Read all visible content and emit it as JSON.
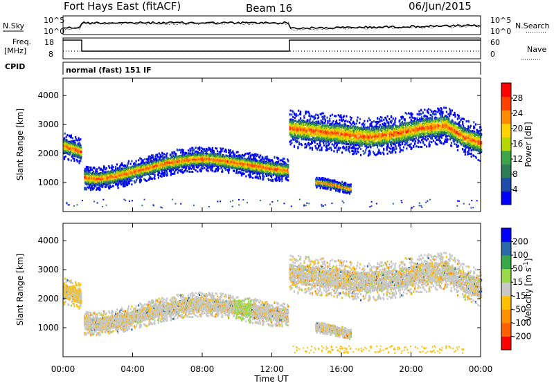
{
  "header": {
    "station": "Fort Hays East (fitACF)",
    "beam": "Beam 16",
    "date": "06/Jun/2015"
  },
  "top_panel": {
    "left_label": "N.Sky",
    "right_label": "N.Search",
    "left_ticks": [
      "10^5",
      "10^0"
    ],
    "right_ticks": [
      "10^5",
      "10^0"
    ]
  },
  "freq_panel": {
    "left_label_line1": "Freq.",
    "left_label_line2": "[MHz]",
    "right_label": "Nave",
    "left_ticks": [
      "18",
      "8"
    ],
    "right_ticks": [
      "60",
      "0"
    ]
  },
  "cpid": {
    "label": "CPID",
    "value": "normal (fast) 151 IF"
  },
  "colors": {
    "power": [
      "#0000ff",
      "#1e4ca8",
      "#2e7d5a",
      "#3fa54a",
      "#b5d900",
      "#ffd200",
      "#ff8c00",
      "#ff4000",
      "#ff0000"
    ],
    "velocity": [
      "#ff0000",
      "#ff6000",
      "#ff9000",
      "#ffc000",
      "#c8c8c8",
      "#9ad94a",
      "#3aa84a",
      "#2a6aa8",
      "#0000ff"
    ]
  },
  "chart_data": [
    {
      "type": "heatmap",
      "title": "",
      "xlabel": "",
      "ylabel": "Slant Range [km]",
      "xlim": [
        "00:00",
        "24:00"
      ],
      "ylim": [
        0,
        4600
      ],
      "x_tick_labels": [
        "00:00",
        "04:00",
        "08:00",
        "12:00",
        "16:00",
        "20:00",
        "00:00"
      ],
      "y_tick_labels": [
        "4000",
        "3000",
        "2000",
        "1000"
      ],
      "y_ticks": [
        4000,
        3000,
        2000,
        1000
      ],
      "colorbar": {
        "label": "Power [dB]",
        "tick_labels": [
          "28",
          "24",
          "20",
          "16",
          "12",
          "8",
          "4"
        ],
        "range": [
          0,
          32
        ]
      },
      "series": [
        {
          "hours": [
            0.0,
            0.5,
            1.0
          ],
          "range_km": [
            2300,
            2200,
            2100
          ]
        },
        {
          "hours": [
            1.2,
            2,
            3,
            4,
            5,
            6,
            7,
            8,
            9,
            10,
            11,
            12,
            12.9
          ],
          "range_km": [
            1200,
            1150,
            1250,
            1400,
            1550,
            1700,
            1800,
            1850,
            1800,
            1700,
            1600,
            1500,
            1450
          ]
        },
        {
          "hours": [
            13.0,
            14.5,
            16,
            17.5,
            19,
            20.5,
            22,
            23,
            24
          ],
          "range_km": [
            2900,
            2800,
            2700,
            2600,
            2700,
            2900,
            3000,
            2600,
            2400
          ]
        },
        {
          "hours": [
            14.5,
            15.5,
            16.5
          ],
          "range_km": [
            1050,
            950,
            800
          ]
        }
      ]
    },
    {
      "type": "heatmap",
      "title": "",
      "xlabel": "Time UT",
      "ylabel": "Slant Range [km]",
      "xlim": [
        "00:00",
        "24:00"
      ],
      "ylim": [
        0,
        4600
      ],
      "x_tick_labels": [
        "00:00",
        "04:00",
        "08:00",
        "12:00",
        "16:00",
        "20:00",
        "00:00"
      ],
      "y_tick_labels": [
        "4000",
        "3000",
        "2000",
        "1000"
      ],
      "y_ticks": [
        4000,
        3000,
        2000,
        1000
      ],
      "colorbar": {
        "label": "Velocity [m s-1]",
        "tick_labels": [
          "200",
          "100",
          "50",
          "15",
          "-15",
          "-50",
          "-100",
          "-200"
        ],
        "tick_values": [
          200,
          100,
          50,
          15,
          -15,
          -50,
          -100,
          -200
        ]
      }
    }
  ]
}
